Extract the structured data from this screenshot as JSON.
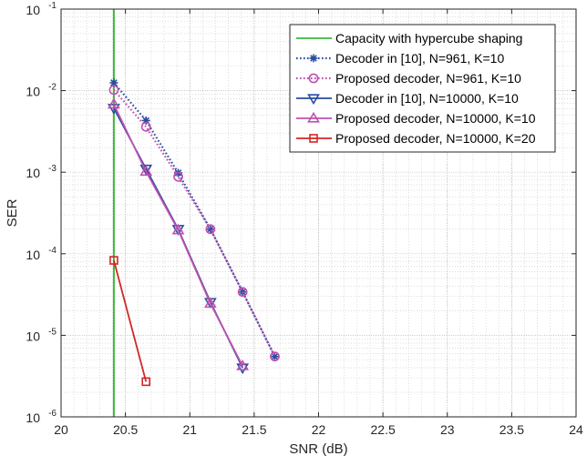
{
  "chart_data": {
    "type": "line",
    "title": "",
    "xlabel": "SNR (dB)",
    "ylabel": "SER",
    "xlim": [
      20,
      24
    ],
    "ylim": [
      1e-06,
      0.1
    ],
    "y_scale": "log",
    "grid": true,
    "minor_grid": true,
    "legend_position": "top-right",
    "x_ticks": [
      "20",
      "20.5",
      "21",
      "21.5",
      "22",
      "22.5",
      "23",
      "23.5",
      "24"
    ],
    "y_ticks": [
      {
        "base": "10",
        "exp": "-6"
      },
      {
        "base": "10",
        "exp": "-5"
      },
      {
        "base": "10",
        "exp": "-4"
      },
      {
        "base": "10",
        "exp": "-3"
      },
      {
        "base": "10",
        "exp": "-2"
      },
      {
        "base": "10",
        "exp": "-1"
      }
    ],
    "series": [
      {
        "name": "Capacity with hypercube shaping",
        "color": "#3cb83c",
        "line_style": "solid",
        "marker": "none",
        "x": [
          20.41,
          20.41
        ],
        "y": [
          1e-06,
          0.1
        ]
      },
      {
        "name": "Decoder in [10], N=961, K=10",
        "color": "#2a4da0",
        "line_style": "dotted",
        "marker": "asterisk",
        "x": [
          20.41,
          20.66,
          20.91,
          21.16,
          21.41,
          21.66
        ],
        "y": [
          0.0125,
          0.0043,
          0.00098,
          0.0002,
          3.4e-05,
          5.5e-06
        ]
      },
      {
        "name": "Proposed decoder, N=961, K=10",
        "color": "#c050b0",
        "line_style": "dotted",
        "marker": "circle",
        "x": [
          20.41,
          20.66,
          20.91,
          21.16,
          21.41,
          21.66
        ],
        "y": [
          0.0102,
          0.0036,
          0.00088,
          0.0002,
          3.4e-05,
          5.5e-06
        ]
      },
      {
        "name": "Decoder in [10], N=10000, K=10",
        "color": "#2a4da0",
        "line_style": "solid",
        "marker": "triangle-down",
        "x": [
          20.41,
          20.66,
          20.91,
          21.16,
          21.41
        ],
        "y": [
          0.0061,
          0.0011,
          0.0002,
          2.55e-05,
          4e-06
        ]
      },
      {
        "name": "Proposed decoder, N=10000, K=10",
        "color": "#c050b0",
        "line_style": "solid",
        "marker": "triangle-up",
        "x": [
          20.41,
          20.66,
          20.91,
          21.16,
          21.41
        ],
        "y": [
          0.0068,
          0.00102,
          0.000195,
          2.45e-05,
          4.2e-06
        ]
      },
      {
        "name": "Proposed decoder, N=10000, K=20",
        "color": "#d42626",
        "line_style": "solid",
        "marker": "square",
        "x": [
          20.41,
          20.66
        ],
        "y": [
          8.3e-05,
          2.7e-06
        ]
      }
    ]
  }
}
